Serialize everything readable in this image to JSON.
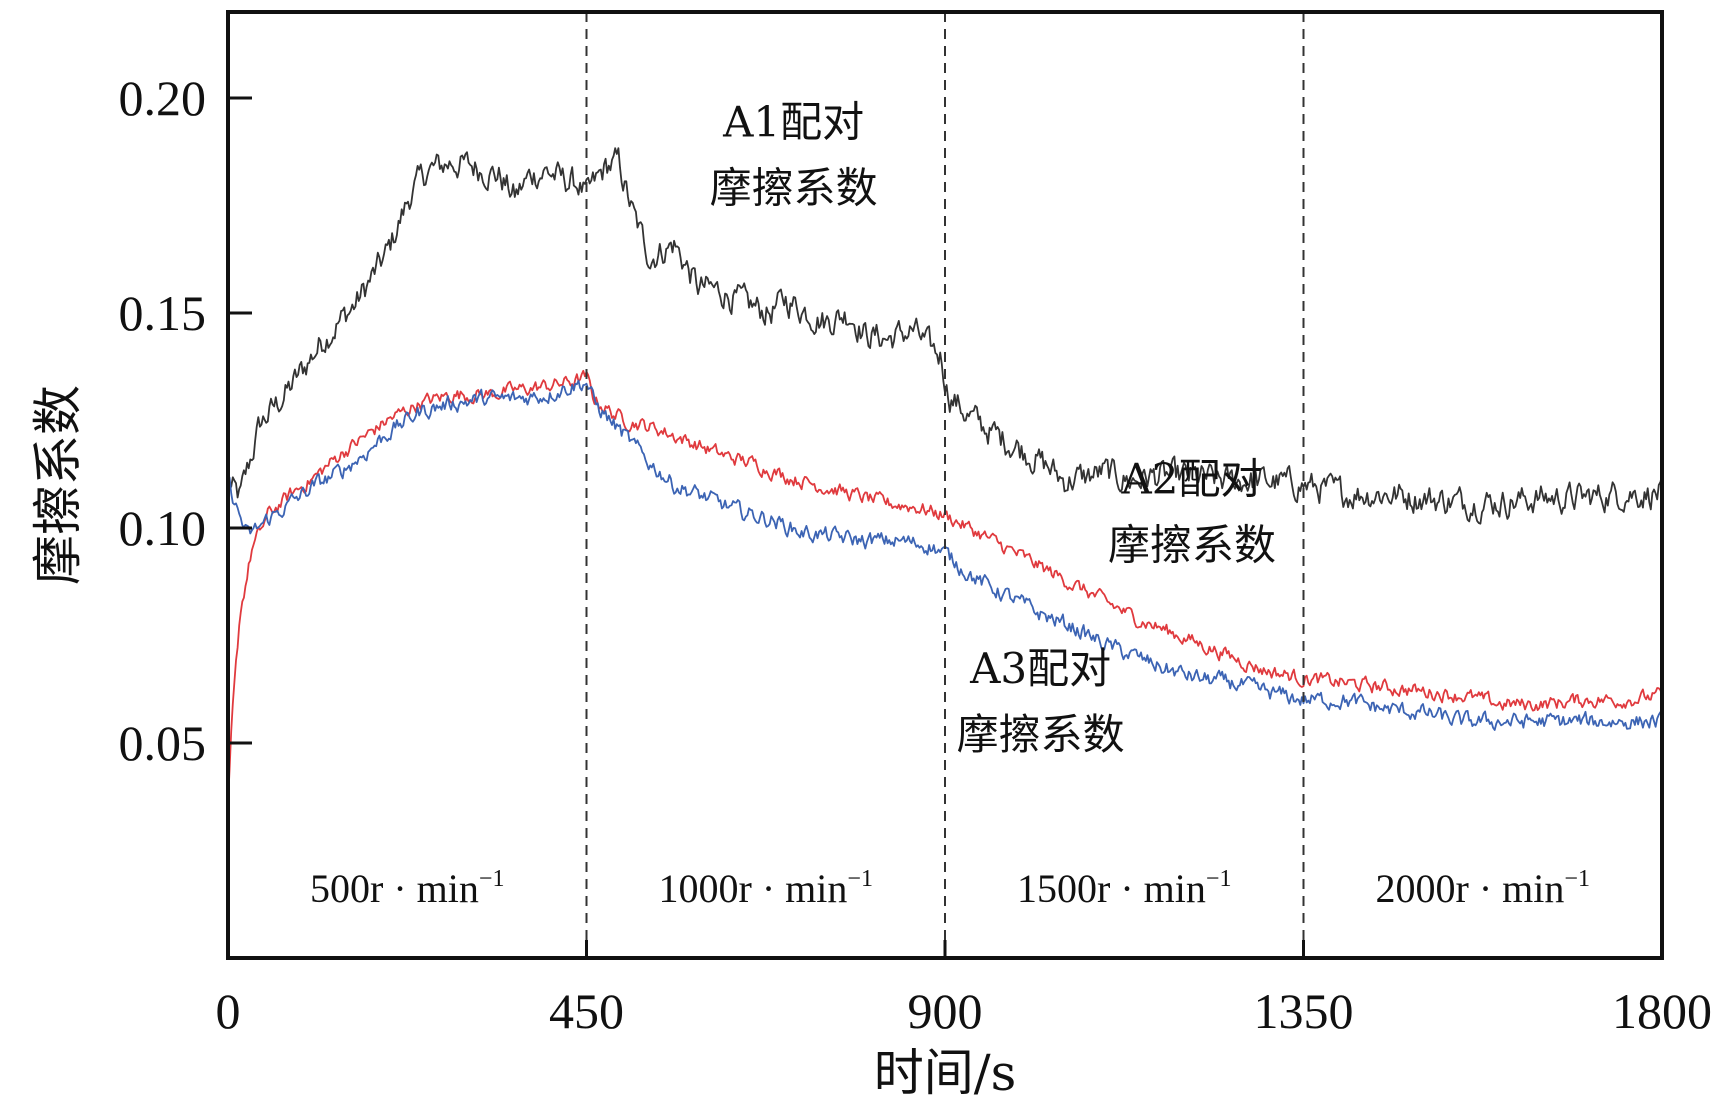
{
  "chart_data": {
    "type": "line",
    "title": "",
    "xlabel": "时间/s",
    "ylabel": "摩擦系数",
    "xlim": [
      0,
      1800
    ],
    "ylim": [
      0.0,
      0.22
    ],
    "x_ticks": [
      0,
      450,
      900,
      1350,
      1800
    ],
    "x_tick_labels": [
      "0",
      "450",
      "900",
      "1350",
      "1800"
    ],
    "y_ticks": [
      0.05,
      0.1,
      0.15,
      0.2
    ],
    "y_tick_labels": [
      "0.05",
      "0.10",
      "0.15",
      "0.20"
    ],
    "grid": false,
    "dividers": [
      450,
      900,
      1350
    ],
    "regions": [
      {
        "label": "500r · min",
        "sup": "−1",
        "x_center": 225
      },
      {
        "label": "1000r · min",
        "sup": "−1",
        "x_center": 675
      },
      {
        "label": "1500r · min",
        "sup": "−1",
        "x_center": 1125
      },
      {
        "label": "2000r · min",
        "sup": "−1",
        "x_center": 1575
      }
    ],
    "series": [
      {
        "name": "A1配对摩擦系数",
        "color": "#333333",
        "noise": 0.0028,
        "x": [
          0,
          15,
          40,
          80,
          120,
          160,
          200,
          230,
          250,
          280,
          310,
          340,
          360,
          380,
          400,
          420,
          440,
          450,
          460,
          475,
          490,
          510,
          530,
          560,
          590,
          620,
          650,
          680,
          700,
          720,
          750,
          780,
          800,
          830,
          860,
          880,
          895,
          900,
          905,
          930,
          960,
          1000,
          1030,
          1050,
          1080,
          1100,
          1130,
          1160,
          1200,
          1250,
          1300,
          1350,
          1400,
          1450,
          1500,
          1550,
          1600,
          1650,
          1700,
          1750,
          1800
        ],
        "y": [
          0.11,
          0.107,
          0.124,
          0.133,
          0.144,
          0.152,
          0.164,
          0.178,
          0.183,
          0.185,
          0.184,
          0.182,
          0.177,
          0.182,
          0.183,
          0.181,
          0.18,
          0.177,
          0.18,
          0.184,
          0.185,
          0.172,
          0.163,
          0.166,
          0.156,
          0.155,
          0.152,
          0.15,
          0.153,
          0.151,
          0.148,
          0.15,
          0.145,
          0.144,
          0.146,
          0.142,
          0.14,
          0.135,
          0.131,
          0.126,
          0.122,
          0.118,
          0.114,
          0.111,
          0.112,
          0.113,
          0.111,
          0.112,
          0.112,
          0.111,
          0.111,
          0.11,
          0.108,
          0.108,
          0.107,
          0.106,
          0.106,
          0.107,
          0.107,
          0.108,
          0.108
        ]
      },
      {
        "name": "A2配对摩擦系数",
        "color": "#e03a3e",
        "noise": 0.0014,
        "x": [
          0,
          5,
          15,
          30,
          50,
          80,
          110,
          140,
          170,
          200,
          240,
          280,
          320,
          360,
          400,
          430,
          450,
          460,
          480,
          500,
          540,
          580,
          620,
          660,
          700,
          740,
          780,
          820,
          860,
          900,
          940,
          980,
          1020,
          1060,
          1100,
          1140,
          1180,
          1220,
          1260,
          1300,
          1350,
          1400,
          1450,
          1500,
          1550,
          1600,
          1650,
          1700,
          1750,
          1800
        ],
        "y": [
          0.035,
          0.055,
          0.08,
          0.095,
          0.103,
          0.108,
          0.112,
          0.117,
          0.121,
          0.125,
          0.129,
          0.131,
          0.131,
          0.132,
          0.133,
          0.134,
          0.135,
          0.13,
          0.127,
          0.125,
          0.123,
          0.12,
          0.117,
          0.115,
          0.112,
          0.11,
          0.108,
          0.106,
          0.105,
          0.103,
          0.099,
          0.095,
          0.091,
          0.087,
          0.083,
          0.079,
          0.076,
          0.073,
          0.07,
          0.067,
          0.065,
          0.064,
          0.063,
          0.062,
          0.061,
          0.059,
          0.059,
          0.06,
          0.06,
          0.061
        ]
      },
      {
        "name": "A3配对摩擦系数",
        "color": "#3c64b4",
        "noise": 0.0016,
        "x": [
          0,
          10,
          25,
          50,
          80,
          110,
          140,
          170,
          200,
          240,
          280,
          320,
          360,
          400,
          430,
          450,
          460,
          480,
          500,
          530,
          560,
          600,
          640,
          680,
          720,
          760,
          800,
          840,
          880,
          900,
          940,
          980,
          1020,
          1060,
          1100,
          1140,
          1180,
          1220,
          1260,
          1300,
          1350,
          1400,
          1450,
          1500,
          1550,
          1600,
          1650,
          1700,
          1750,
          1800
        ],
        "y": [
          0.111,
          0.105,
          0.098,
          0.102,
          0.106,
          0.11,
          0.113,
          0.117,
          0.122,
          0.127,
          0.129,
          0.13,
          0.13,
          0.131,
          0.133,
          0.134,
          0.129,
          0.125,
          0.121,
          0.115,
          0.11,
          0.107,
          0.104,
          0.102,
          0.099,
          0.098,
          0.097,
          0.097,
          0.096,
          0.094,
          0.088,
          0.084,
          0.08,
          0.077,
          0.073,
          0.07,
          0.067,
          0.065,
          0.064,
          0.062,
          0.06,
          0.06,
          0.058,
          0.057,
          0.055,
          0.055,
          0.055,
          0.055,
          0.055,
          0.055
        ]
      }
    ],
    "annotations": [
      {
        "lines": [
          "A1配对",
          "摩擦系数"
        ],
        "x": 710,
        "y": 0.191,
        "anchor": "middle"
      },
      {
        "lines": [
          "A2配对",
          "摩擦系数"
        ],
        "x": 1210,
        "y": 0.108,
        "anchor": "middle"
      },
      {
        "lines": [
          "A3配对",
          "摩擦系数"
        ],
        "x": 1020,
        "y": 0.064,
        "anchor": "middle"
      }
    ]
  }
}
